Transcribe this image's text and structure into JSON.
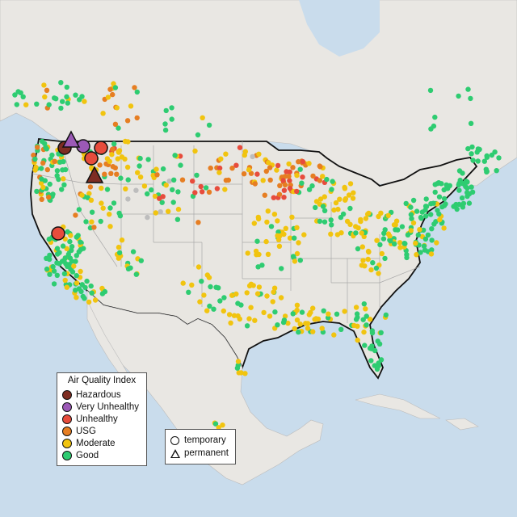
{
  "legend": {
    "title": "Air Quality Index",
    "categories": [
      {
        "label": "Hazardous",
        "color": "#7e2d22"
      },
      {
        "label": "Very Unhealthy",
        "color": "#9b59b6"
      },
      {
        "label": "Unhealthy",
        "color": "#e74c3c"
      },
      {
        "label": "USG",
        "color": "#e67e22"
      },
      {
        "label": "Moderate",
        "color": "#f1c40f"
      },
      {
        "label": "Good",
        "color": "#2ecc71"
      }
    ],
    "types": [
      {
        "label": "temporary",
        "icon": "circle-icon"
      },
      {
        "label": "permanent",
        "icon": "triangle-icon"
      }
    ]
  },
  "colors": {
    "ocean": "#c9dcec",
    "land": "#e8e6e1",
    "border": "#111111",
    "no_data": "#bdbdbd"
  }
}
